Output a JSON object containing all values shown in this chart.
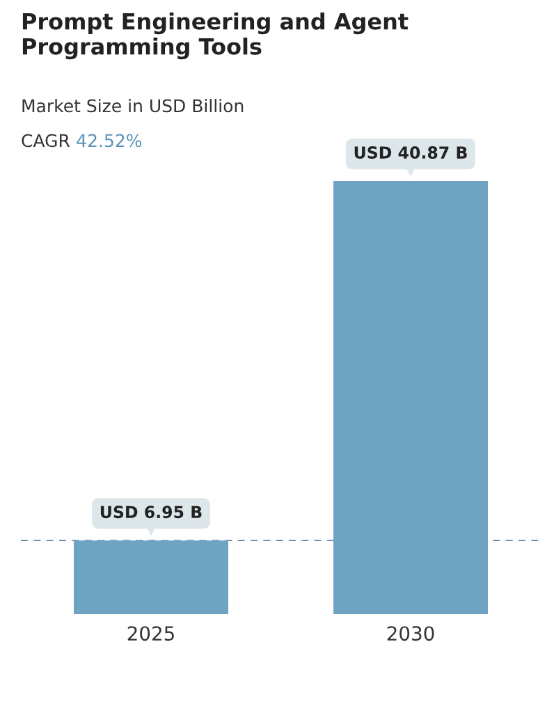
{
  "chart_data": {
    "type": "bar",
    "title": "Prompt Engineering and Agent Programming Tools",
    "subtitle": "Market Size in USD Billion",
    "annotations": [
      "CAGR",
      "42.52%"
    ],
    "categories": [
      "2025",
      "2030"
    ],
    "values": [
      6.95,
      40.87
    ],
    "value_labels": [
      "USD 6.95 B",
      "USD 40.87 B"
    ],
    "color": "#6ea3c2",
    "ref_lines": [
      {
        "axis": "y",
        "value": 6.95,
        "color": "#5a7f99",
        "line_style": "dashed"
      }
    ],
    "grid": false,
    "legend": false
  }
}
